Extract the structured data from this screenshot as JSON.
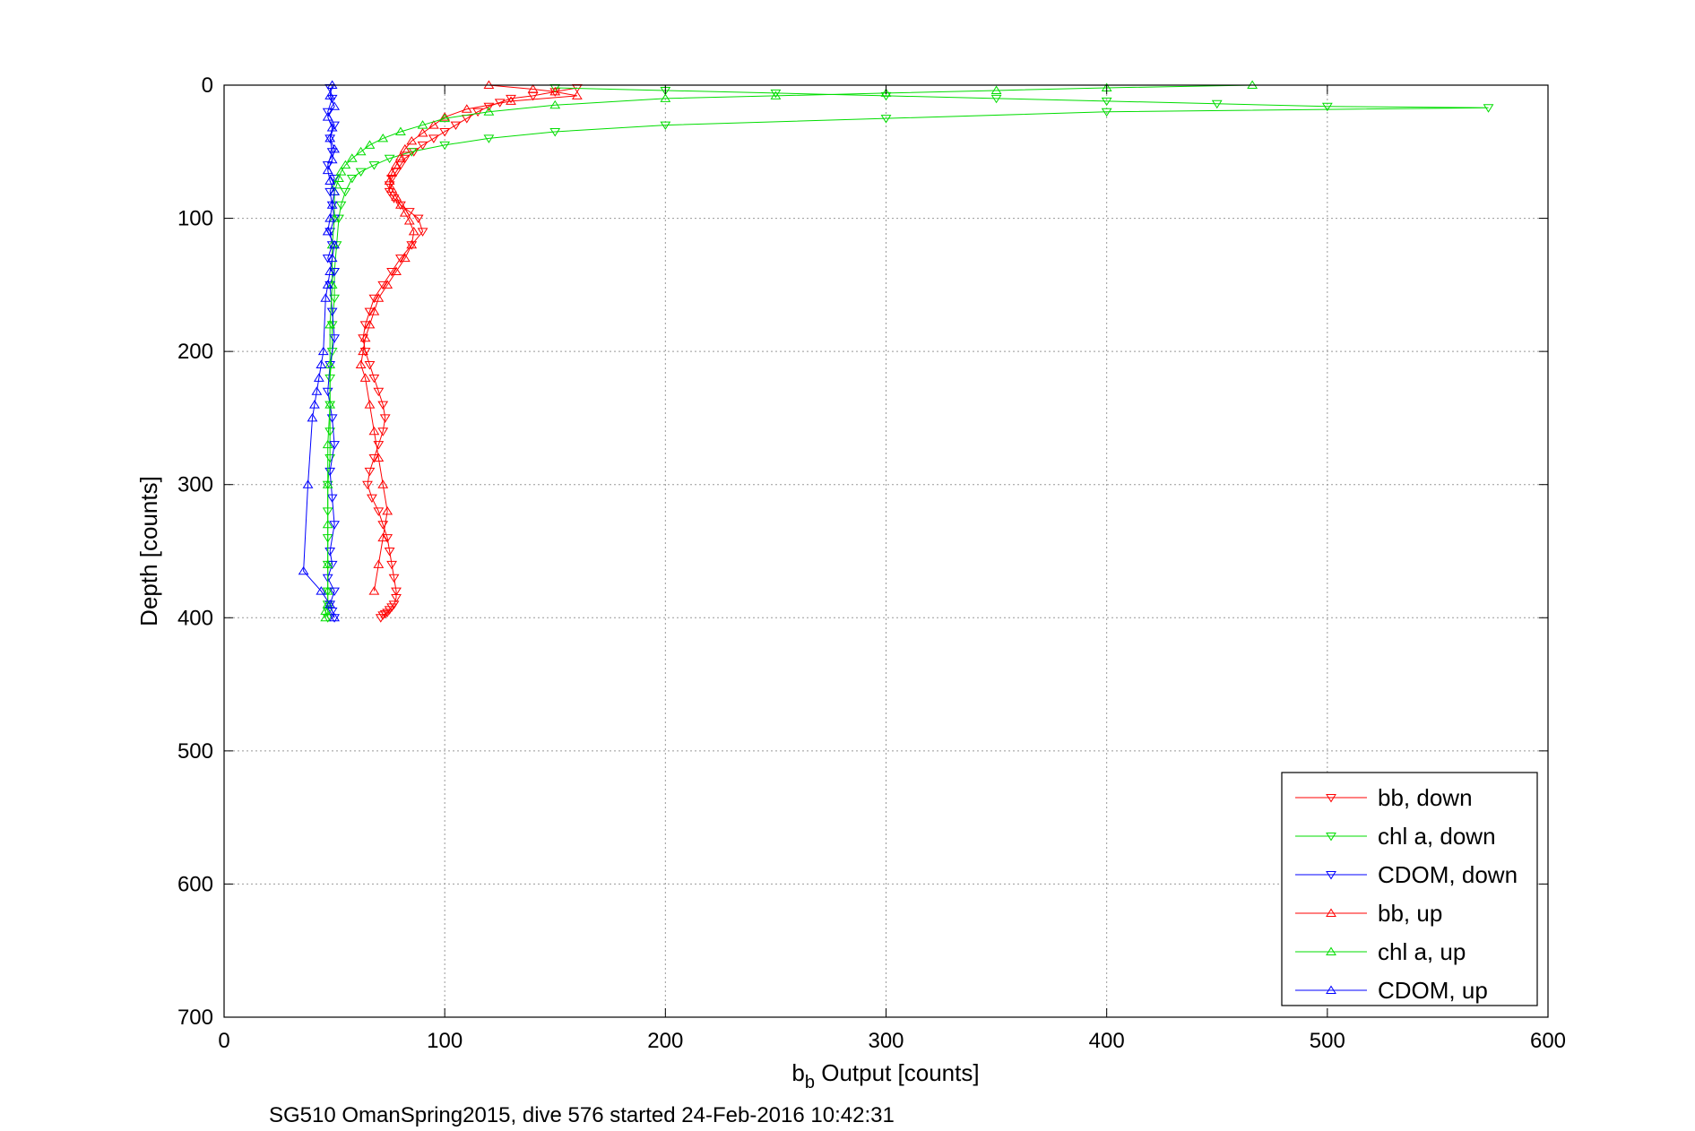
{
  "chart_data": {
    "type": "scatter",
    "xlabel_main": "b",
    "xlabel_sub": "b",
    "xlabel_rest": " Output [counts]",
    "ylabel": "Depth [counts]",
    "footer": "SG510 OmanSpring2015, dive 576 started 24-Feb-2016 10:42:31",
    "xlim": [
      0,
      600
    ],
    "ylim": [
      0,
      700
    ],
    "y_reversed": true,
    "grid": true,
    "legend_position": "bottom-right",
    "x_ticks": [
      "0",
      "100",
      "200",
      "300",
      "400",
      "500",
      "600"
    ],
    "y_ticks": [
      "0",
      "100",
      "200",
      "300",
      "400",
      "500",
      "600",
      "700"
    ],
    "series": [
      {
        "name": "bb, down",
        "color": "#ff0000",
        "marker": "triangle-down",
        "x": [
          160,
          150,
          140,
          130,
          125,
          120,
          115,
          110,
          105,
          100,
          95,
          90,
          86,
          82,
          80,
          78,
          76,
          75,
          75,
          77,
          80,
          84,
          88,
          90,
          85,
          80,
          76,
          72,
          68,
          66,
          64,
          63,
          64,
          66,
          68,
          70,
          72,
          73,
          72,
          70,
          68,
          66,
          65,
          67,
          70,
          72,
          74,
          75,
          76,
          77,
          78,
          78,
          77,
          76,
          75,
          74,
          73,
          72,
          71
        ],
        "y": [
          2,
          5,
          8,
          10,
          13,
          16,
          20,
          25,
          30,
          35,
          40,
          45,
          50,
          55,
          60,
          65,
          70,
          75,
          80,
          85,
          90,
          95,
          100,
          110,
          120,
          130,
          140,
          150,
          160,
          170,
          180,
          190,
          200,
          210,
          220,
          230,
          240,
          250,
          260,
          270,
          280,
          290,
          300,
          310,
          320,
          330,
          340,
          350,
          360,
          370,
          380,
          385,
          390,
          392,
          394,
          396,
          397,
          398,
          400
        ]
      },
      {
        "name": "chl a, down",
        "color": "#00dd00",
        "marker": "triangle-down",
        "x": [
          150,
          200,
          250,
          300,
          350,
          400,
          450,
          500,
          573,
          400,
          300,
          200,
          150,
          120,
          100,
          85,
          75,
          68,
          62,
          58,
          55,
          53,
          52,
          51,
          50,
          50,
          49,
          49,
          48,
          48,
          48,
          48,
          47,
          47,
          47,
          47,
          47,
          47,
          47,
          47
        ],
        "y": [
          2,
          4,
          6,
          8,
          10,
          12,
          14,
          16,
          17,
          20,
          25,
          30,
          35,
          40,
          45,
          50,
          55,
          60,
          65,
          70,
          80,
          90,
          100,
          120,
          140,
          160,
          180,
          200,
          220,
          240,
          260,
          280,
          300,
          320,
          340,
          360,
          380,
          390,
          395,
          400
        ]
      },
      {
        "name": "CDOM, down",
        "color": "#0000ff",
        "marker": "triangle-down",
        "x": [
          48,
          49,
          47,
          50,
          48,
          49,
          47,
          50,
          48,
          49,
          50,
          48,
          49,
          47,
          50,
          48,
          49,
          50,
          48,
          47,
          49,
          50,
          48,
          49,
          50,
          48,
          49,
          47,
          50,
          48,
          49,
          50
        ],
        "y": [
          2,
          10,
          20,
          30,
          40,
          50,
          60,
          70,
          80,
          90,
          100,
          110,
          120,
          130,
          140,
          150,
          170,
          190,
          210,
          230,
          250,
          270,
          290,
          310,
          330,
          350,
          360,
          370,
          380,
          390,
          395,
          400
        ]
      },
      {
        "name": "bb, up",
        "color": "#ff0000",
        "marker": "triangle-up",
        "x": [
          120,
          140,
          150,
          160,
          130,
          110,
          100,
          95,
          90,
          85,
          82,
          80,
          78,
          76,
          75,
          76,
          78,
          80,
          82,
          84,
          86,
          85,
          82,
          78,
          74,
          70,
          68,
          66,
          64,
          63,
          62,
          64,
          66,
          68,
          70,
          72,
          74,
          72,
          70,
          68
        ],
        "y": [
          0,
          3,
          5,
          8,
          12,
          18,
          24,
          30,
          36,
          42,
          48,
          54,
          60,
          66,
          72,
          78,
          84,
          90,
          96,
          102,
          110,
          120,
          130,
          140,
          150,
          160,
          170,
          180,
          190,
          200,
          210,
          220,
          240,
          260,
          280,
          300,
          320,
          340,
          360,
          380
        ]
      },
      {
        "name": "chl a, up",
        "color": "#00dd00",
        "marker": "triangle-up",
        "x": [
          466,
          400,
          350,
          300,
          250,
          200,
          150,
          120,
          100,
          90,
          80,
          72,
          66,
          62,
          58,
          55,
          53,
          52,
          51,
          50,
          50,
          49,
          49,
          48,
          48,
          48,
          47,
          47,
          47,
          47,
          47,
          47,
          46,
          46
        ],
        "y": [
          0,
          2,
          4,
          6,
          8,
          10,
          15,
          20,
          25,
          30,
          35,
          40,
          45,
          50,
          55,
          60,
          65,
          70,
          75,
          80,
          100,
          120,
          150,
          180,
          210,
          240,
          270,
          300,
          330,
          360,
          380,
          390,
          395,
          400
        ]
      },
      {
        "name": "CDOM, up",
        "color": "#0000ff",
        "marker": "triangle-up",
        "x": [
          49,
          48,
          50,
          47,
          49,
          48,
          50,
          49,
          47,
          48,
          50,
          49,
          48,
          47,
          50,
          49,
          48,
          47,
          46,
          45,
          44,
          43,
          42,
          41,
          40,
          38,
          36,
          44,
          48,
          50
        ],
        "y": [
          0,
          8,
          16,
          24,
          32,
          40,
          48,
          56,
          64,
          72,
          80,
          90,
          100,
          110,
          120,
          130,
          140,
          150,
          160,
          200,
          210,
          220,
          230,
          240,
          250,
          300,
          365,
          380,
          390,
          400
        ]
      }
    ]
  }
}
